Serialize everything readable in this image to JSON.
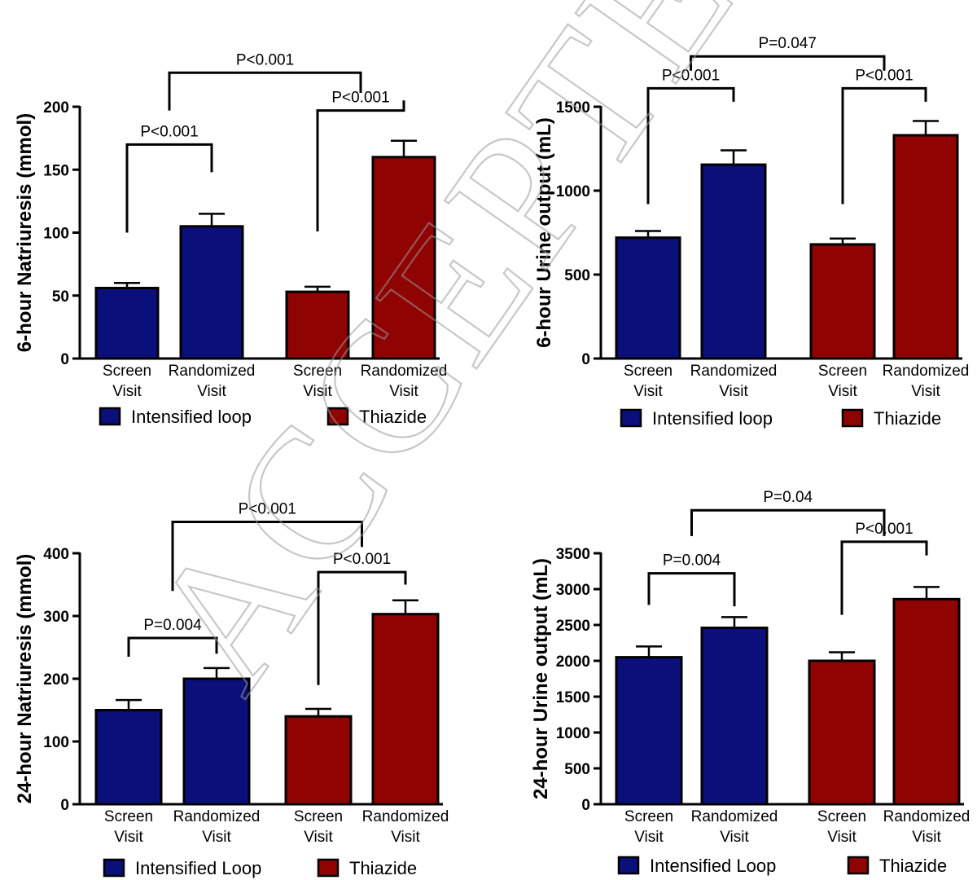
{
  "watermark": "ACCEPTED",
  "colors": {
    "loop": "#0a0f7a",
    "thiazide": "#8f0303",
    "axis": "#000000"
  },
  "chart_data": [
    {
      "id": "p1",
      "type": "bar",
      "ylabel": "6-hour Natriuresis (mmol)",
      "ylim": [
        0,
        200
      ],
      "yticks": [
        0,
        50,
        100,
        150,
        200
      ],
      "groups": [
        {
          "name": "Intensified loop",
          "color_key": "loop",
          "bars": [
            {
              "label_lines": [
                "Screen",
                "Visit"
              ],
              "value": 56,
              "err": 4
            },
            {
              "label_lines": [
                "Randomized",
                "Visit"
              ],
              "value": 105,
              "err": 10
            }
          ]
        },
        {
          "name": "Thiazide",
          "color_key": "thiazide",
          "bars": [
            {
              "label_lines": [
                "Screen",
                "Visit"
              ],
              "value": 53,
              "err": 4
            },
            {
              "label_lines": [
                "Randomized",
                "Visit"
              ],
              "value": 160,
              "err": 13
            }
          ]
        }
      ],
      "legend": [
        "Intensified loop",
        "Thiazide"
      ],
      "brackets": [
        {
          "text": "P<0.001",
          "from": 0,
          "to": 1,
          "level": 170,
          "leg_from": 100,
          "leg_to": 148
        },
        {
          "text": "P<0.001",
          "from": 2,
          "to": 3,
          "level": 197,
          "leg_from": 101,
          "leg_to": 205
        },
        {
          "text": "P<0.001",
          "from": 0.5,
          "to": 2.5,
          "level": 227,
          "leg_from": 197,
          "leg_to": 211
        }
      ]
    },
    {
      "id": "p2",
      "type": "bar",
      "ylabel": "6-hour Urine output (mL)",
      "ylim": [
        0,
        1500
      ],
      "yticks": [
        0,
        500,
        1000,
        1500
      ],
      "groups": [
        {
          "name": "Intensified loop",
          "color_key": "loop",
          "bars": [
            {
              "label_lines": [
                "Screen",
                "Visit"
              ],
              "value": 720,
              "err": 40
            },
            {
              "label_lines": [
                "Randomized",
                "Visit"
              ],
              "value": 1155,
              "err": 85
            }
          ]
        },
        {
          "name": "Thiazide",
          "color_key": "thiazide",
          "bars": [
            {
              "label_lines": [
                "Screen",
                "Visit"
              ],
              "value": 680,
              "err": 35
            },
            {
              "label_lines": [
                "Randomized",
                "Visit"
              ],
              "value": 1330,
              "err": 85
            }
          ]
        }
      ],
      "legend": [
        "Intensified loop",
        "Thiazide"
      ],
      "brackets": [
        {
          "text": "P<0.001",
          "from": 0,
          "to": 1,
          "level": 1610,
          "leg_from": 920,
          "leg_to": 1530
        },
        {
          "text": "P<0.001",
          "from": 2,
          "to": 3,
          "level": 1610,
          "leg_from": 920,
          "leg_to": 1530
        },
        {
          "text": "P=0.047",
          "from": 0.5,
          "to": 2.5,
          "level": 1800,
          "leg_from": 1715,
          "leg_to": 1715
        }
      ]
    },
    {
      "id": "p3",
      "type": "bar",
      "ylabel": "24-hour Natriuresis (mmol)",
      "ylim": [
        0,
        400
      ],
      "yticks": [
        0,
        100,
        200,
        300,
        400
      ],
      "groups": [
        {
          "name": "Intensified Loop",
          "color_key": "loop",
          "bars": [
            {
              "label_lines": [
                "Screen",
                "Visit"
              ],
              "value": 150,
              "err": 16
            },
            {
              "label_lines": [
                "Randomized",
                "Visit"
              ],
              "value": 200,
              "err": 17
            }
          ]
        },
        {
          "name": "Thiazide",
          "color_key": "thiazide",
          "bars": [
            {
              "label_lines": [
                "Screen",
                "Visit"
              ],
              "value": 140,
              "err": 12
            },
            {
              "label_lines": [
                "Randomized",
                "Visit"
              ],
              "value": 303,
              "err": 22
            }
          ]
        }
      ],
      "legend": [
        "Intensified Loop",
        "Thiazide"
      ],
      "brackets": [
        {
          "text": "P=0.004",
          "from": 0,
          "to": 1,
          "level": 265,
          "leg_from": 235,
          "leg_to": 240
        },
        {
          "text": "P<0.001",
          "from": 2,
          "to": 3,
          "level": 370,
          "leg_from": 190,
          "leg_to": 350
        },
        {
          "text": "P<0.001",
          "from": 0.5,
          "to": 2.5,
          "level": 450,
          "leg_from": 340,
          "leg_to": 410
        }
      ]
    },
    {
      "id": "p4",
      "type": "bar",
      "ylabel": "24-hour Urine output (mL)",
      "ylim": [
        0,
        3500
      ],
      "yticks": [
        0,
        500,
        1000,
        1500,
        2000,
        2500,
        3000,
        3500
      ],
      "groups": [
        {
          "name": "Intensified Loop",
          "color_key": "loop",
          "bars": [
            {
              "label_lines": [
                "Screen",
                "Visit"
              ],
              "value": 2050,
              "err": 150
            },
            {
              "label_lines": [
                "Randomized",
                "Visit"
              ],
              "value": 2460,
              "err": 150
            }
          ]
        },
        {
          "name": "Thiazide",
          "color_key": "thiazide",
          "bars": [
            {
              "label_lines": [
                "Screen",
                "Visit"
              ],
              "value": 2000,
              "err": 120
            },
            {
              "label_lines": [
                "Randomized",
                "Visit"
              ],
              "value": 2860,
              "err": 170
            }
          ]
        }
      ],
      "legend": [
        "Intensified Loop",
        "Thiazide"
      ],
      "brackets": [
        {
          "text": "P=0.004",
          "from": 0,
          "to": 1,
          "level": 3220,
          "leg_from": 2780,
          "leg_to": 2760
        },
        {
          "text": "P<0.001",
          "from": 2,
          "to": 3,
          "level": 3660,
          "leg_from": 2640,
          "leg_to": 3470
        },
        {
          "text": "P=0.04",
          "from": 0.5,
          "to": 2.5,
          "level": 4100,
          "leg_from": 3740,
          "leg_to": 3740
        }
      ]
    }
  ]
}
